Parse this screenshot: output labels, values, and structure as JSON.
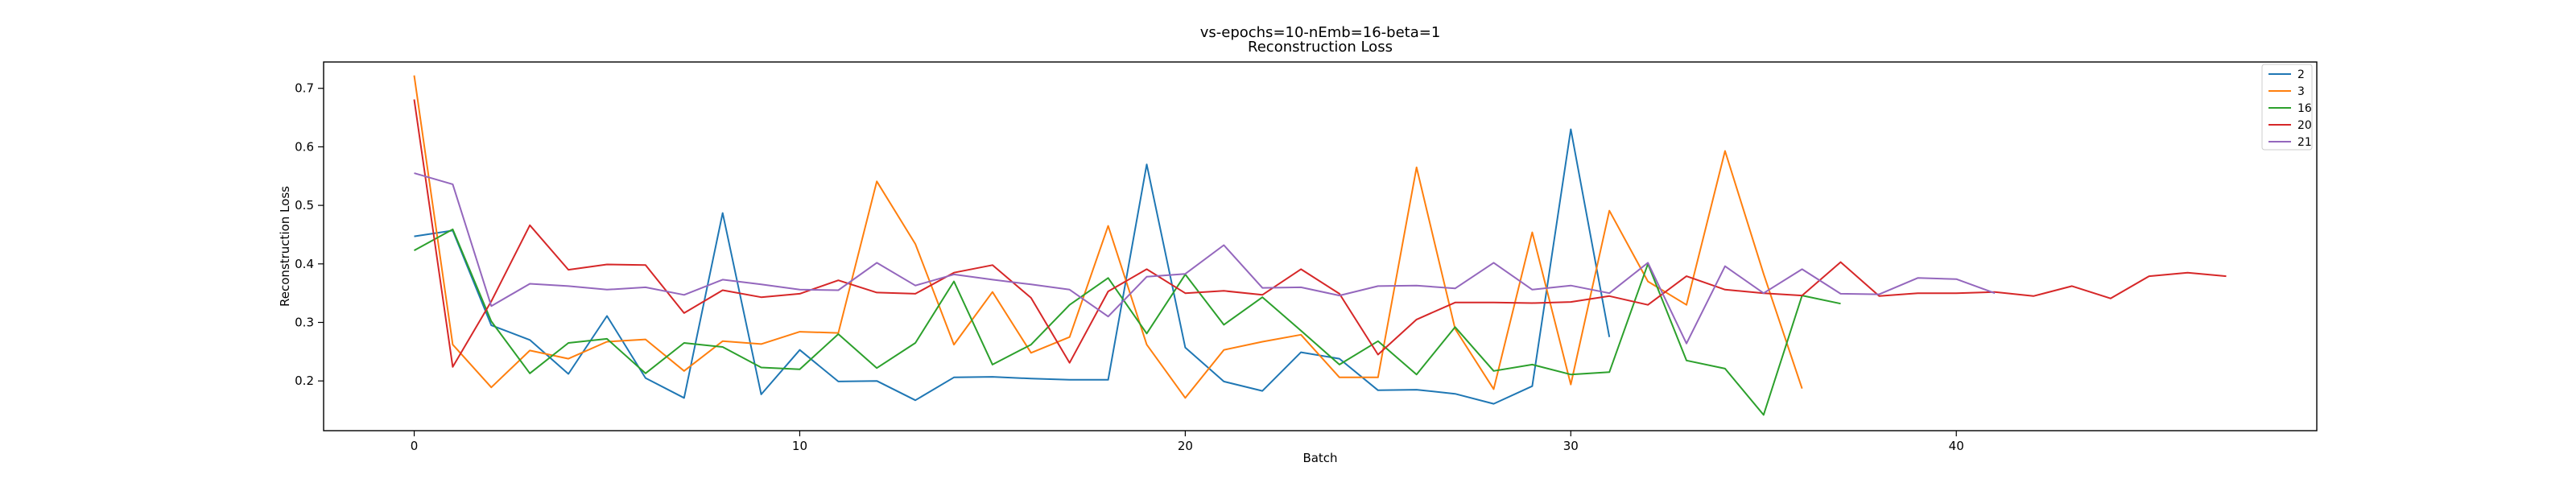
{
  "chart_data": {
    "type": "line",
    "title": "vs-epochs=10-nEmb=16-beta=1",
    "subtitle": "Reconstruction Loss",
    "xlabel": "Batch",
    "ylabel": "Reconstruction Loss",
    "xlim": [
      -2.35,
      49.35
    ],
    "ylim": [
      0.115,
      0.745
    ],
    "xticks": [
      0,
      10,
      20,
      30,
      40
    ],
    "yticks": [
      0.2,
      0.3,
      0.4,
      0.5,
      0.6,
      0.7
    ],
    "grid": false,
    "legend_position": "top-right",
    "series": [
      {
        "name": "2",
        "color": "#1f77b4",
        "values": [
          0.447,
          0.457,
          0.295,
          0.27,
          0.212,
          0.311,
          0.205,
          0.171,
          0.487,
          0.177,
          0.253,
          0.199,
          0.2,
          0.167,
          0.206,
          0.207,
          0.204,
          0.202,
          0.202,
          0.57,
          0.257,
          0.199,
          0.183,
          0.249,
          0.238,
          0.184,
          0.185,
          0.178,
          0.161,
          0.191,
          0.63,
          0.275
        ]
      },
      {
        "name": "3",
        "color": "#ff7f0e",
        "values": [
          0.722,
          0.262,
          0.189,
          0.252,
          0.238,
          0.267,
          0.271,
          0.217,
          0.268,
          0.263,
          0.284,
          0.282,
          0.541,
          0.434,
          0.262,
          0.352,
          0.248,
          0.275,
          0.465,
          0.262,
          0.171,
          0.253,
          0.267,
          0.279,
          0.206,
          0.206,
          0.565,
          0.289,
          0.186,
          0.454,
          0.194,
          0.491,
          0.37,
          0.33,
          0.593,
          0.383,
          0.187
        ]
      },
      {
        "name": "16",
        "color": "#2ca02c",
        "values": [
          0.423,
          0.459,
          0.302,
          0.213,
          0.265,
          0.272,
          0.213,
          0.265,
          0.258,
          0.223,
          0.22,
          0.28,
          0.222,
          0.265,
          0.37,
          0.228,
          0.262,
          0.33,
          0.376,
          0.281,
          0.382,
          0.296,
          0.343,
          0.286,
          0.228,
          0.268,
          0.211,
          0.292,
          0.217,
          0.228,
          0.211,
          0.215,
          0.4,
          0.235,
          0.221,
          0.142,
          0.346,
          0.332
        ]
      },
      {
        "name": "20",
        "color": "#d62728",
        "values": [
          0.681,
          0.224,
          0.336,
          0.466,
          0.39,
          0.399,
          0.398,
          0.316,
          0.355,
          0.343,
          0.349,
          0.372,
          0.351,
          0.349,
          0.385,
          0.398,
          0.342,
          0.231,
          0.353,
          0.391,
          0.35,
          0.354,
          0.347,
          0.391,
          0.349,
          0.245,
          0.305,
          0.334,
          0.334,
          0.333,
          0.335,
          0.345,
          0.33,
          0.379,
          0.356,
          0.35,
          0.346,
          0.403,
          0.345,
          0.35,
          0.35,
          0.352,
          0.345,
          0.362,
          0.341,
          0.379,
          0.385,
          0.379
        ]
      },
      {
        "name": "21",
        "color": "#9467bd",
        "values": [
          0.555,
          0.536,
          0.328,
          0.366,
          0.362,
          0.356,
          0.36,
          0.347,
          0.373,
          0.365,
          0.356,
          0.355,
          0.402,
          0.363,
          0.382,
          0.373,
          0.365,
          0.356,
          0.31,
          0.378,
          0.383,
          0.432,
          0.359,
          0.36,
          0.346,
          0.362,
          0.363,
          0.358,
          0.402,
          0.356,
          0.363,
          0.35,
          0.402,
          0.264,
          0.396,
          0.35,
          0.391,
          0.349,
          0.348,
          0.376,
          0.374,
          0.35
        ]
      }
    ]
  }
}
